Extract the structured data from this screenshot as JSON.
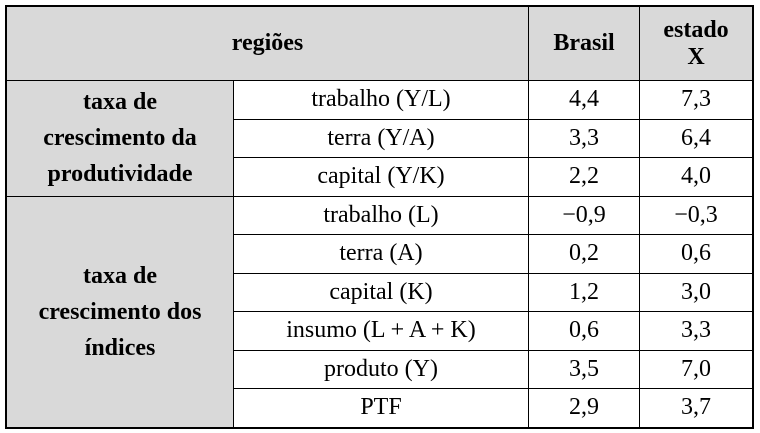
{
  "table": {
    "header": {
      "regions": "regiões",
      "brasil": "Brasil",
      "estado_lines": [
        "estado",
        "X"
      ]
    },
    "groups": [
      {
        "label_lines": [
          "taxa de",
          "crescimento da",
          "produtividade"
        ],
        "rows": [
          {
            "label": "trabalho (Y/L)",
            "brasil": "4,4",
            "estado": "7,3"
          },
          {
            "label": "terra (Y/A)",
            "brasil": "3,3",
            "estado": "6,4"
          },
          {
            "label": "capital (Y/K)",
            "brasil": "2,2",
            "estado": "4,0"
          }
        ]
      },
      {
        "label_lines": [
          "taxa de",
          "crescimento dos",
          "índices"
        ],
        "rows": [
          {
            "label": "trabalho (L)",
            "brasil": "−0,9",
            "estado": "−0,3"
          },
          {
            "label": "terra (A)",
            "brasil": "0,2",
            "estado": "0,6"
          },
          {
            "label": "capital (K)",
            "brasil": "1,2",
            "estado": "3,0"
          },
          {
            "label": "insumo (L + A + K)",
            "brasil": "0,6",
            "estado": "3,3"
          },
          {
            "label": "produto (Y)",
            "brasil": "3,5",
            "estado": "7,0"
          },
          {
            "label": "PTF",
            "brasil": "2,9",
            "estado": "3,7"
          }
        ]
      }
    ]
  }
}
